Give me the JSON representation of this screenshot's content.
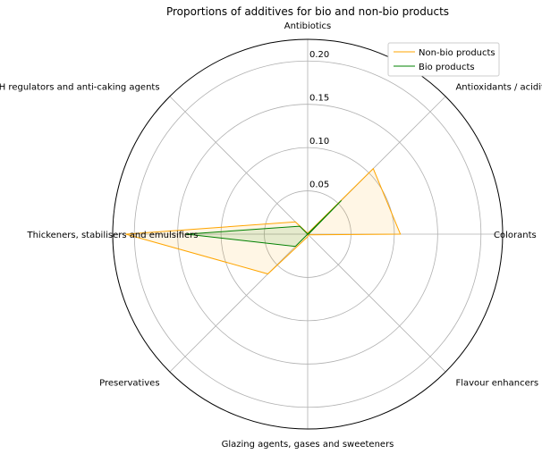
{
  "chart_data": {
    "type": "radar",
    "title": "Proportions of additives for bio and non-bio products",
    "axes": [
      "Antibiotics",
      "Antioxidants / acidity regulators",
      "Colorants",
      "Flavour enhancers",
      "Glazing agents, gases and sweeteners",
      "Preservatives",
      "Thickeners, stabilisers and emulsifiers",
      "pH regulators and anti-caking agents"
    ],
    "r_ticks": [
      "0.05",
      "0.10",
      "0.15",
      "0.20"
    ],
    "r_max": 0.225,
    "grid": true,
    "legend_position": "top-right",
    "series": [
      {
        "name": "Non-bio products",
        "color": "#ffa500",
        "fill_opacity": 0.1,
        "values": [
          0.001,
          0.107,
          0.107,
          0.001,
          0.003,
          0.065,
          0.21,
          0.02
        ]
      },
      {
        "name": "Bio products",
        "color": "#008000",
        "fill_opacity": 0.1,
        "values": [
          0.0,
          0.055,
          0.001,
          0.0,
          0.0,
          0.02,
          0.14,
          0.013
        ]
      }
    ]
  }
}
